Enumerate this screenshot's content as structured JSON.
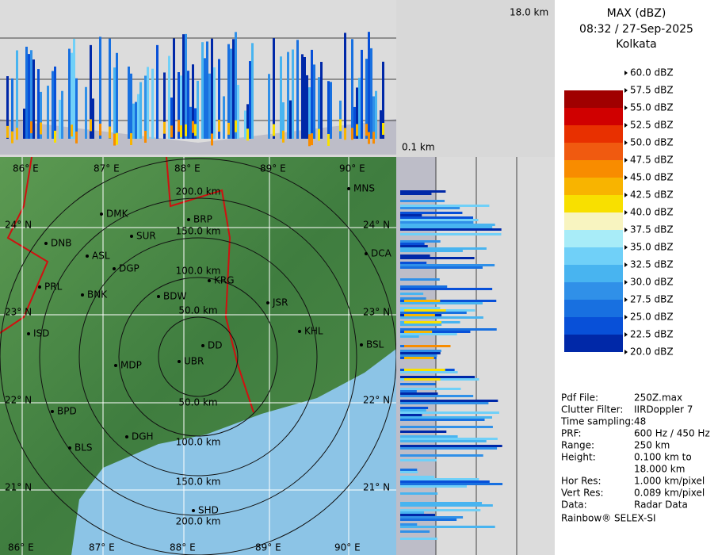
{
  "header": {
    "top_height": "18.0 km",
    "bottom_height": "0.1 km"
  },
  "title": {
    "product": "MAX (dBZ)",
    "time": "08:32 / 27-Sep-2025",
    "site": "Kolkata"
  },
  "legend": [
    {
      "label": "60.0 dBZ",
      "color": "#ffffff"
    },
    {
      "label": "57.5 dBZ",
      "color": "#a00000"
    },
    {
      "label": "55.0 dBZ",
      "color": "#d00000"
    },
    {
      "label": "52.5 dBZ",
      "color": "#e83000"
    },
    {
      "label": "50.0 dBZ",
      "color": "#f05a10"
    },
    {
      "label": "47.5 dBZ",
      "color": "#f88c00"
    },
    {
      "label": "45.0 dBZ",
      "color": "#f8b400"
    },
    {
      "label": "42.5 dBZ",
      "color": "#f8e000"
    },
    {
      "label": "40.0 dBZ",
      "color": "#f8f4c0"
    },
    {
      "label": "37.5 dBZ",
      "color": "#a8ecf8"
    },
    {
      "label": "35.0 dBZ",
      "color": "#70d0f8"
    },
    {
      "label": "32.5 dBZ",
      "color": "#48b4f0"
    },
    {
      "label": "30.0 dBZ",
      "color": "#3090e8"
    },
    {
      "label": "27.5 dBZ",
      "color": "#1870e0"
    },
    {
      "label": "25.0 dBZ",
      "color": "#0850d8"
    },
    {
      "label": "22.5 dBZ",
      "color": "#0028a8"
    },
    {
      "label": "20.0 dBZ",
      "color": "#ffffff"
    }
  ],
  "map": {
    "lon_labels": [
      "86° E",
      "87° E",
      "88° E",
      "89° E",
      "90° E"
    ],
    "lat_labels": [
      "24° N",
      "23° N",
      "22° N",
      "21° N"
    ],
    "range_labels": [
      "50.0 km",
      "100.0 km",
      "150.0 km",
      "200.0 km"
    ],
    "cities": [
      "MNS",
      "DMK",
      "BRP",
      "SUR",
      "DNB",
      "ASL",
      "DGP",
      "DCA",
      "PRL",
      "BNK",
      "KRG",
      "BDW",
      "JSR",
      "ISD",
      "KHL",
      "BSL",
      "MDP",
      "DD",
      "UBR",
      "BPD",
      "DGH",
      "BLS",
      "SHD"
    ]
  },
  "info": [
    {
      "label": "Pdf File:",
      "value": "250Z.max"
    },
    {
      "label": "Clutter Filter:",
      "value": "IIRDoppler 7"
    },
    {
      "label": "Time sampling:",
      "value": "48"
    },
    {
      "label": "PRF:",
      "value": "600 Hz / 450 Hz"
    },
    {
      "label": "Range:",
      "value": "250 km"
    },
    {
      "label": "Height:",
      "value": "0.100 km to"
    },
    {
      "label": "",
      "value": "18.000 km"
    },
    {
      "label": "Hor Res:",
      "value": "1.000 km/pixel"
    },
    {
      "label": "Vert Res:",
      "value": "0.089 km/pixel"
    },
    {
      "label": "Data:",
      "value": "Radar Data"
    }
  ],
  "footer": "Rainbow® SELEX-SI"
}
